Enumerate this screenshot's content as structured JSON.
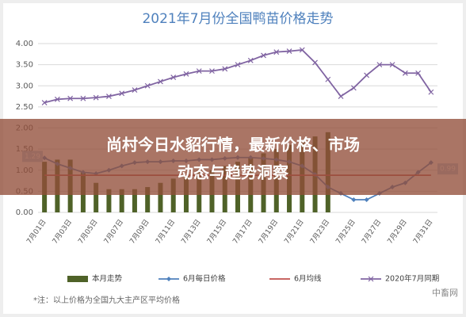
{
  "chart_data": {
    "type": "bar",
    "title": "2021年7月份全国鸭苗价格走势",
    "categories": [
      "7月01日",
      null,
      "7月03日",
      null,
      "7月05日",
      null,
      "7月07日",
      null,
      "7月09日",
      null,
      "7月11日",
      null,
      "7月13日",
      null,
      "7月15日",
      null,
      "7月17日",
      null,
      "7月19日",
      null,
      "7月21日",
      null,
      "7月23日",
      null,
      "7月25日",
      null,
      "7月27日",
      null,
      "7月29日",
      null,
      "7月31日"
    ],
    "ylim": [
      0,
      4
    ],
    "yticks": [
      {
        "value": 0,
        "label": "0.00"
      },
      {
        "value": 0.5,
        "label": "0.50"
      },
      {
        "value": 1,
        "label": "1.00"
      },
      {
        "value": 1.5,
        "label": "1.50"
      },
      {
        "value": 2,
        "label": "2.00"
      },
      {
        "value": 2.5,
        "label": "2.50"
      },
      {
        "value": 3,
        "label": "3.00"
      },
      {
        "value": 3.5,
        "label": "3.50"
      },
      {
        "value": 4,
        "label": "4.00"
      }
    ],
    "grid": true,
    "legend": "bottom",
    "series": [
      {
        "name": "本月走势",
        "type": "bar",
        "color": "#4f6228",
        "values": [
          1.2,
          1.25,
          1.25,
          0.95,
          0.7,
          0.55,
          0.55,
          0.55,
          0.6,
          0.7,
          0.8,
          0.9,
          1.0,
          1.0,
          1.1,
          1.2,
          1.3,
          1.4,
          1.5,
          1.6,
          1.7,
          1.8,
          1.9,
          null,
          null,
          null,
          null,
          null,
          null,
          null,
          null
        ]
      },
      {
        "name": "6月每日价格",
        "type": "line",
        "marker": "diamond",
        "color": "#4f81bd",
        "values": [
          1.29,
          1.15,
          1.05,
          0.95,
          0.92,
          1.0,
          1.1,
          1.18,
          1.2,
          1.2,
          1.22,
          1.22,
          1.25,
          1.25,
          1.28,
          1.3,
          1.3,
          1.28,
          1.25,
          1.2,
          1.1,
          0.9,
          0.6,
          0.45,
          0.3,
          0.3,
          0.45,
          0.6,
          0.7,
          0.95,
          1.18
        ]
      },
      {
        "name": "6月均线",
        "type": "line",
        "marker": "none",
        "color": "#c0504d",
        "values": [
          0.88,
          0.88,
          0.88,
          0.88,
          0.88,
          0.88,
          0.88,
          0.88,
          0.88,
          0.88,
          0.88,
          0.88,
          0.88,
          0.88,
          0.88,
          0.88,
          0.88,
          0.88,
          0.88,
          0.88,
          0.88,
          0.88,
          0.88,
          0.88,
          0.88,
          0.88,
          0.88,
          0.88,
          0.88,
          0.88,
          0.88
        ]
      },
      {
        "name": "2020年7月同期",
        "type": "line",
        "marker": "x",
        "color": "#8064a2",
        "values": [
          2.6,
          2.68,
          2.7,
          2.7,
          2.72,
          2.75,
          2.82,
          2.9,
          3.0,
          3.1,
          3.2,
          3.28,
          3.35,
          3.35,
          3.4,
          3.5,
          3.6,
          3.72,
          3.8,
          3.82,
          3.85,
          3.55,
          3.15,
          2.75,
          2.95,
          3.25,
          3.5,
          3.5,
          3.3,
          3.3,
          2.85
        ]
      }
    ],
    "annotations": [
      "1.29",
      "0.99"
    ],
    "note": "*注：以上价格为全国九大主产区平均价格"
  },
  "overlay_title": "尚村今日水貂行情，最新价格、市场动态与趋势洞察",
  "watermark": "中畜网"
}
